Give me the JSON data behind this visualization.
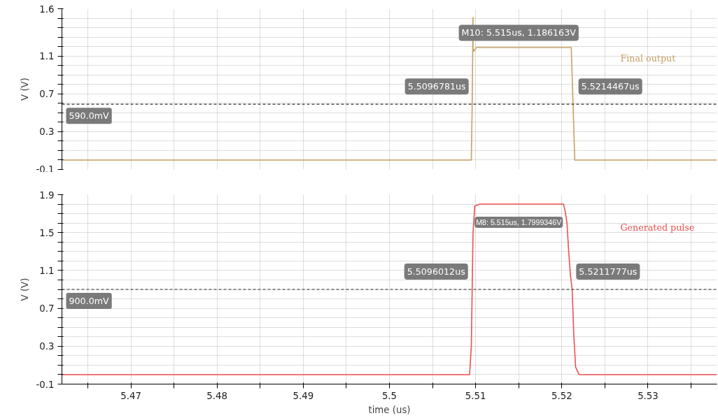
{
  "chart_data": [
    {
      "type": "line",
      "ylabel": "V (V)",
      "tick_labels": "y",
      "grid": true,
      "legend": false,
      "marker": "none",
      "line_style": "solid",
      "xlim": [
        5.462,
        5.538
      ],
      "xticks": [
        {
          "value": 5.465,
          "label": null
        },
        {
          "value": 5.47,
          "label": null
        },
        {
          "value": 5.475,
          "label": null
        },
        {
          "value": 5.48,
          "label": null
        },
        {
          "value": 5.485,
          "label": null
        },
        {
          "value": 5.49,
          "label": null
        },
        {
          "value": 5.495,
          "label": null
        },
        {
          "value": 5.5,
          "label": null
        },
        {
          "value": 5.505,
          "label": null
        },
        {
          "value": 5.51,
          "label": null
        },
        {
          "value": 5.515,
          "label": null
        },
        {
          "value": 5.52,
          "label": null
        },
        {
          "value": 5.525,
          "label": null
        },
        {
          "value": 5.53,
          "label": null
        },
        {
          "value": 5.535,
          "label": null
        }
      ],
      "ylim": [
        -0.1,
        1.6
      ],
      "yticks": [
        -0.1,
        {
          "value": 0.0,
          "label": null
        },
        {
          "value": 0.1,
          "label": null
        },
        {
          "value": 0.2,
          "label": null
        },
        0.3,
        {
          "value": 0.4,
          "label": null
        },
        {
          "value": 0.5,
          "label": null
        },
        {
          "value": 0.6,
          "label": null
        },
        0.7,
        {
          "value": 0.8,
          "label": null
        },
        {
          "value": 0.9,
          "label": null
        },
        {
          "value": 1.0,
          "label": null
        },
        1.1,
        {
          "value": 1.2,
          "label": null
        },
        {
          "value": 1.3,
          "label": null
        },
        {
          "value": 1.4,
          "label": null
        },
        {
          "value": 1.5,
          "label": null
        },
        1.6
      ],
      "series": [
        {
          "name": "Final output",
          "color": "#c8a165",
          "x": [
            5.462,
            5.5095,
            5.5096,
            5.5097,
            5.5097,
            5.5098,
            5.51,
            5.5101,
            5.5211,
            5.5213,
            5.5215,
            5.538
          ],
          "values": [
            0,
            0,
            0.59,
            1.51,
            1.18,
            1.15,
            1.18,
            1.19,
            1.19,
            0.6,
            0,
            0
          ]
        }
      ],
      "ref_lines": [
        {
          "axis": "y",
          "value": 0.59,
          "label": "590.0mV",
          "color": "#333333",
          "line_style": "dashed"
        }
      ],
      "annotations": [
        {
          "text": "M10: 5.515us, 1.186163V",
          "x": 5.515,
          "y": 1.186163
        },
        {
          "text": "5.5096781us",
          "x": 5.5096781,
          "y": 0.59
        },
        {
          "text": "5.5214467us",
          "x": 5.5214467,
          "y": 0.59
        }
      ]
    },
    {
      "type": "line",
      "ylabel": "V (V)",
      "xlabel": "time (us)",
      "grid": true,
      "legend": false,
      "marker": "none",
      "line_style": "solid",
      "xlim": [
        5.462,
        5.538
      ],
      "xticks": [
        {
          "value": 5.465,
          "label": null
        },
        5.47,
        {
          "value": 5.475,
          "label": null
        },
        5.48,
        {
          "value": 5.485,
          "label": null
        },
        5.49,
        {
          "value": 5.495,
          "label": null
        },
        {
          "value": 5.5,
          "label": "5.5"
        },
        {
          "value": 5.505,
          "label": null
        },
        5.51,
        {
          "value": 5.515,
          "label": null
        },
        5.52,
        {
          "value": 5.525,
          "label": null
        },
        5.53,
        {
          "value": 5.535,
          "label": null
        }
      ],
      "ylim": [
        -0.1,
        1.9
      ],
      "yticks": [
        -0.1,
        {
          "value": 0.0,
          "label": null
        },
        {
          "value": 0.1,
          "label": null
        },
        {
          "value": 0.2,
          "label": null
        },
        0.3,
        {
          "value": 0.4,
          "label": null
        },
        {
          "value": 0.5,
          "label": null
        },
        {
          "value": 0.6,
          "label": null
        },
        0.7,
        {
          "value": 0.8,
          "label": null
        },
        {
          "value": 0.9,
          "label": null
        },
        {
          "value": 1.0,
          "label": null
        },
        1.1,
        {
          "value": 1.2,
          "label": null
        },
        {
          "value": 1.3,
          "label": null
        },
        {
          "value": 1.4,
          "label": null
        },
        1.5,
        {
          "value": 1.6,
          "label": null
        },
        {
          "value": 1.7,
          "label": null
        },
        {
          "value": 1.8,
          "label": null
        },
        1.9
      ],
      "series": [
        {
          "name": "Generated pulse",
          "color": "#f05050",
          "x": [
            5.462,
            5.5093,
            5.5095,
            5.5096,
            5.5097,
            5.5099,
            5.5105,
            5.5202,
            5.5204,
            5.5206,
            5.5208,
            5.521,
            5.5212,
            5.5214,
            5.5216,
            5.522,
            5.538
          ],
          "values": [
            0,
            0,
            0.3,
            0.9,
            1.5,
            1.78,
            1.8,
            1.8,
            1.72,
            1.6,
            1.3,
            1.05,
            0.9,
            0.4,
            0.08,
            0,
            0
          ]
        }
      ],
      "ref_lines": [
        {
          "axis": "y",
          "value": 0.9,
          "label": "900.0mV",
          "color": "#333333",
          "line_style": "dashed"
        }
      ],
      "annotations": [
        {
          "text": "M8: 5.515us, 1.7999346V",
          "x": 5.515,
          "y": 1.7999346
        },
        {
          "text": "5.5096012us",
          "x": 5.5096012,
          "y": 0.9
        },
        {
          "text": "5.5211777us",
          "x": 5.5211777,
          "y": 0.9
        }
      ]
    }
  ]
}
